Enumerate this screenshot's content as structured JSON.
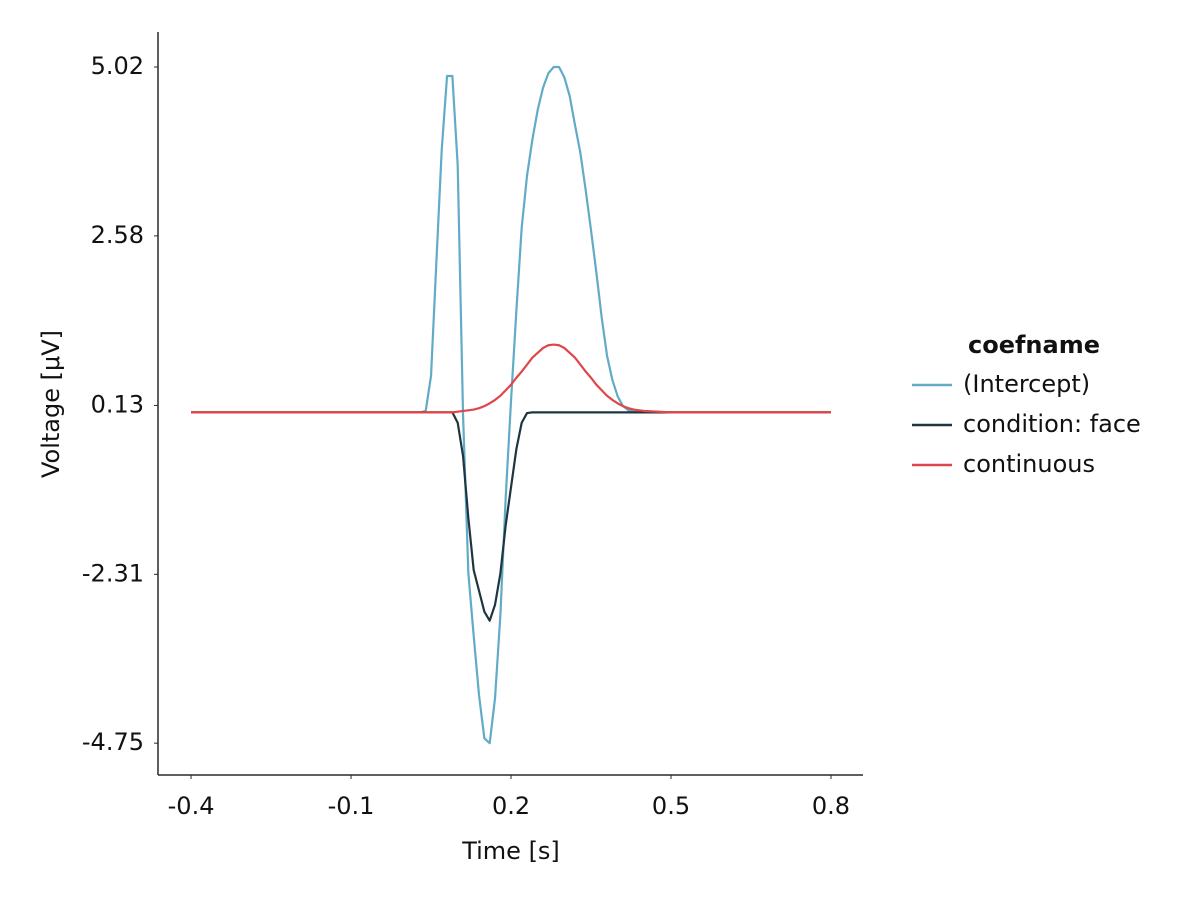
{
  "chart_data": {
    "type": "line",
    "x_label": "Time [s]",
    "y_label": "Voltage [μV]",
    "legend_title": "coefname",
    "legend": "right",
    "xlim": [
      -0.462,
      0.86
    ],
    "ylim": [
      -5.21,
      5.526
    ],
    "xticks": [
      -0.4,
      -0.1,
      0.2,
      0.5,
      0.8
    ],
    "yticks": [
      -4.75,
      -2.31,
      0.13,
      2.58,
      5.02
    ],
    "x": [
      -0.4,
      -0.35,
      -0.3,
      -0.25,
      -0.2,
      -0.15,
      -0.1,
      -0.05,
      0.0,
      0.01,
      0.02,
      0.03,
      0.04,
      0.05,
      0.06,
      0.07,
      0.08,
      0.09,
      0.1,
      0.11,
      0.12,
      0.13,
      0.14,
      0.15,
      0.16,
      0.17,
      0.18,
      0.19,
      0.2,
      0.21,
      0.22,
      0.23,
      0.24,
      0.25,
      0.26,
      0.27,
      0.28,
      0.29,
      0.3,
      0.31,
      0.32,
      0.33,
      0.34,
      0.35,
      0.36,
      0.37,
      0.38,
      0.39,
      0.4,
      0.41,
      0.42,
      0.43,
      0.44,
      0.45,
      0.5,
      0.55,
      0.6,
      0.65,
      0.7,
      0.75,
      0.8
    ],
    "series": [
      {
        "name": "(Intercept)",
        "color": "#62abc6",
        "values": [
          0.03,
          0.03,
          0.03,
          0.03,
          0.03,
          0.03,
          0.03,
          0.03,
          0.03,
          0.03,
          0.03,
          0.03,
          0.05,
          0.56,
          2.2,
          3.82,
          4.89,
          4.89,
          3.6,
          0.0,
          -2.3,
          -3.2,
          -4.06,
          -4.68,
          -4.75,
          -4.1,
          -2.9,
          -1.2,
          0.2,
          1.5,
          2.7,
          3.45,
          3.97,
          4.4,
          4.72,
          4.93,
          5.02,
          5.02,
          4.87,
          4.6,
          4.18,
          3.78,
          3.24,
          2.66,
          2.05,
          1.4,
          0.85,
          0.5,
          0.26,
          0.12,
          0.06,
          0.04,
          0.03,
          0.03,
          0.03,
          0.03,
          0.03,
          0.03,
          0.03,
          0.03,
          0.03
        ]
      },
      {
        "name": "condition: face",
        "color": "#1f3541",
        "values": [
          0.03,
          0.03,
          0.03,
          0.03,
          0.03,
          0.03,
          0.03,
          0.03,
          0.03,
          0.03,
          0.03,
          0.03,
          0.03,
          0.03,
          0.03,
          0.03,
          0.03,
          0.03,
          -0.12,
          -0.6,
          -1.5,
          -2.25,
          -2.55,
          -2.85,
          -2.98,
          -2.75,
          -2.3,
          -1.6,
          -1.05,
          -0.5,
          -0.12,
          0.02,
          0.03,
          0.03,
          0.03,
          0.03,
          0.03,
          0.03,
          0.03,
          0.03,
          0.03,
          0.03,
          0.03,
          0.03,
          0.03,
          0.03,
          0.03,
          0.03,
          0.03,
          0.03,
          0.03,
          0.03,
          0.03,
          0.03,
          0.03,
          0.03,
          0.03,
          0.03,
          0.03,
          0.03,
          0.03
        ]
      },
      {
        "name": "continuous",
        "color": "#e0454a",
        "values": [
          0.03,
          0.03,
          0.03,
          0.03,
          0.03,
          0.03,
          0.03,
          0.03,
          0.03,
          0.03,
          0.03,
          0.03,
          0.03,
          0.03,
          0.03,
          0.03,
          0.03,
          0.03,
          0.04,
          0.05,
          0.06,
          0.07,
          0.09,
          0.12,
          0.16,
          0.21,
          0.27,
          0.35,
          0.43,
          0.53,
          0.62,
          0.72,
          0.82,
          0.89,
          0.96,
          1.0,
          1.01,
          1.0,
          0.96,
          0.89,
          0.82,
          0.72,
          0.62,
          0.53,
          0.43,
          0.35,
          0.27,
          0.21,
          0.16,
          0.12,
          0.09,
          0.07,
          0.06,
          0.05,
          0.03,
          0.03,
          0.03,
          0.03,
          0.03,
          0.03,
          0.03
        ]
      }
    ]
  }
}
